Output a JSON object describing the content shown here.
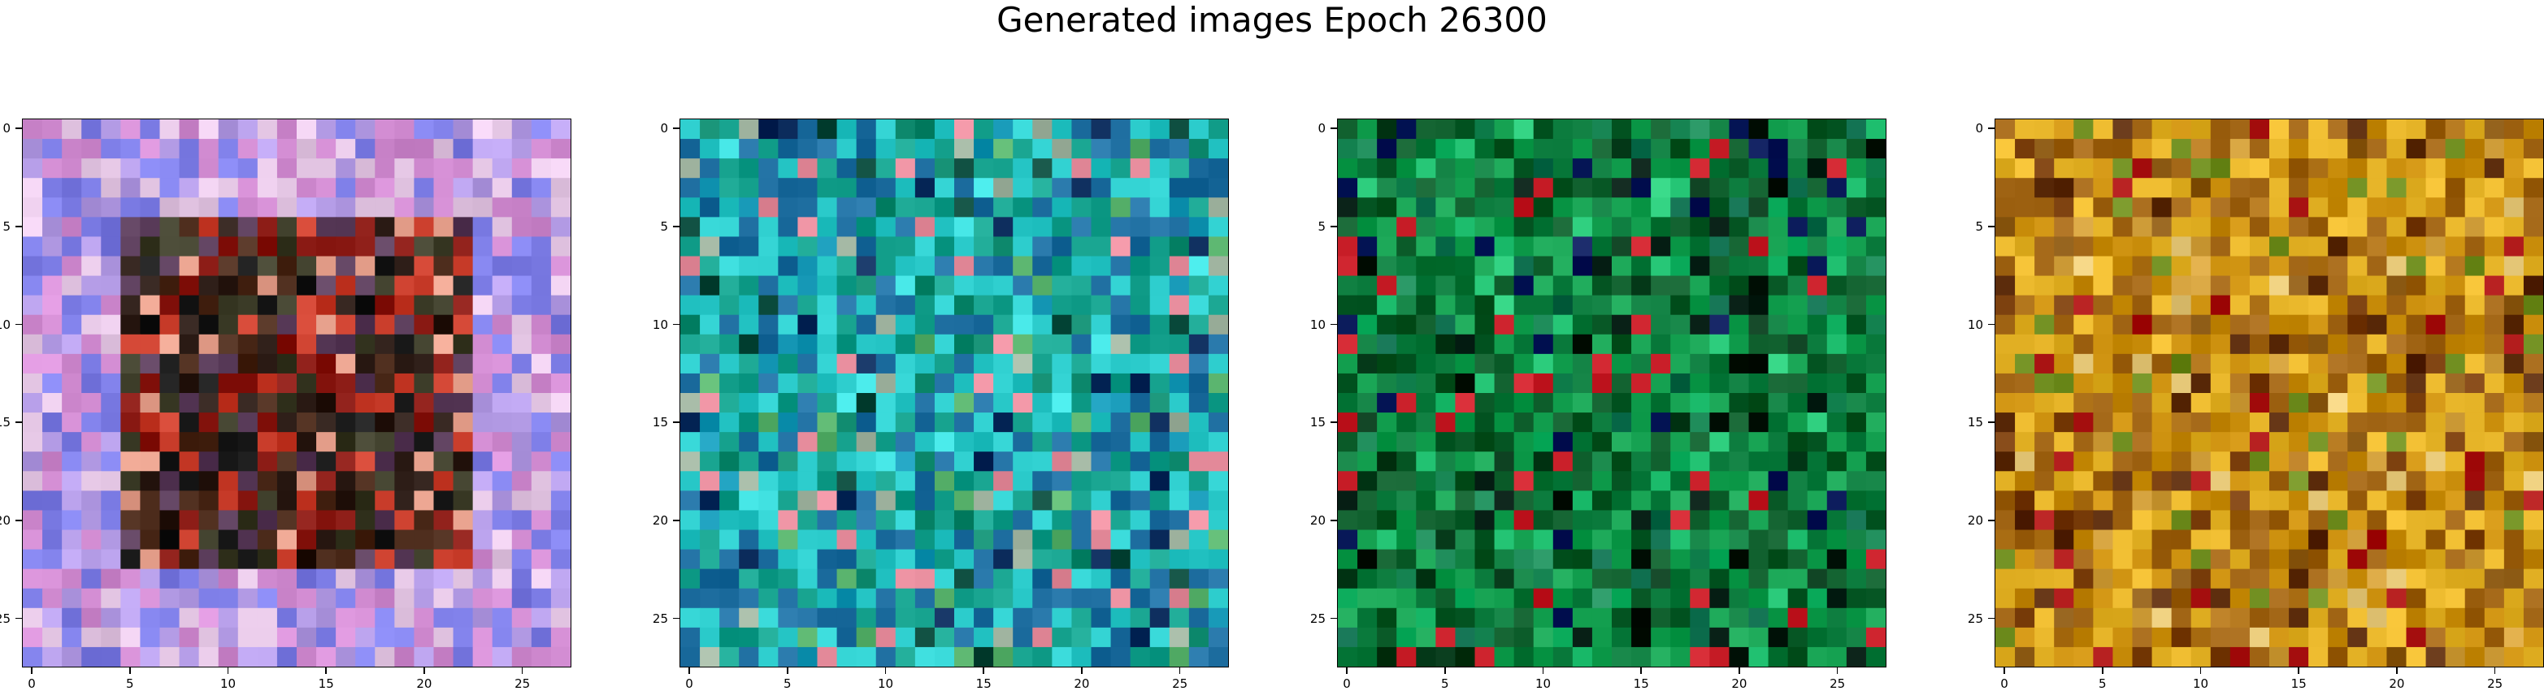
{
  "title": "Generated images Epoch 26300",
  "chart_data": [
    {
      "type": "heatmap",
      "title": "",
      "grid_size": [
        28,
        28
      ],
      "xlim": [
        -0.5,
        27.5
      ],
      "ylim": [
        27.5,
        -0.5
      ],
      "x_ticks": [
        0,
        5,
        10,
        15,
        20,
        25
      ],
      "y_ticks": [
        0,
        5,
        10,
        15,
        20,
        25
      ],
      "palette": [
        "#7d7de6",
        "#b49ce6",
        "#d28cd2",
        "#e6c8e6",
        "#5a3c5a",
        "#2a1a14",
        "#4b2a1a",
        "#8a1a14",
        "#c83c2a",
        "#e6a08c",
        "#1a1a1a",
        "#3c3c28"
      ],
      "description": "colorful purple and pink border with dark brown/black center"
    },
    {
      "type": "heatmap",
      "title": "",
      "grid_size": [
        28,
        28
      ],
      "xlim": [
        -0.5,
        27.5
      ],
      "ylim": [
        27.5,
        -0.5
      ],
      "x_ticks": [
        0,
        5,
        10,
        15,
        20,
        25
      ],
      "y_ticks": [
        0,
        5,
        10,
        15,
        20,
        25
      ],
      "palette": [
        "#14a08c",
        "#28c8c8",
        "#1e6ea0",
        "#0a2a5a",
        "#3cdcdc",
        "#0f8a6e",
        "#5ab46e",
        "#1496b4",
        "#0a4a3c",
        "#e68c9c",
        "#a0b4a0"
      ]
    },
    {
      "type": "heatmap",
      "title": "",
      "grid_size": [
        28,
        28
      ],
      "xlim": [
        -0.5,
        27.5
      ],
      "ylim": [
        27.5,
        -0.5
      ],
      "x_ticks": [
        0,
        5,
        10,
        15,
        20,
        25
      ],
      "y_ticks": [
        0,
        5,
        10,
        15,
        20,
        25
      ],
      "palette": [
        "#0a7a3c",
        "#14a050",
        "#0a5a28",
        "#063a1a",
        "#28c878",
        "#0a6a4a",
        "#14b464",
        "#021a10",
        "#1e8c5a",
        "#c81e28",
        "#0a1a5a"
      ]
    },
    {
      "type": "heatmap",
      "title": "",
      "grid_size": [
        28,
        28
      ],
      "xlim": [
        -0.5,
        27.5
      ],
      "ylim": [
        27.5,
        -0.5
      ],
      "x_ticks": [
        0,
        5,
        10,
        15,
        20,
        25
      ],
      "y_ticks": [
        0,
        5,
        10,
        15,
        20,
        25
      ],
      "palette": [
        "#c88c0a",
        "#a06414",
        "#e6b428",
        "#8c5a14",
        "#b4781e",
        "#783c0a",
        "#d2a03c",
        "#aa1414",
        "#6e8c1e",
        "#e6c878",
        "#5a2a0a"
      ]
    }
  ]
}
